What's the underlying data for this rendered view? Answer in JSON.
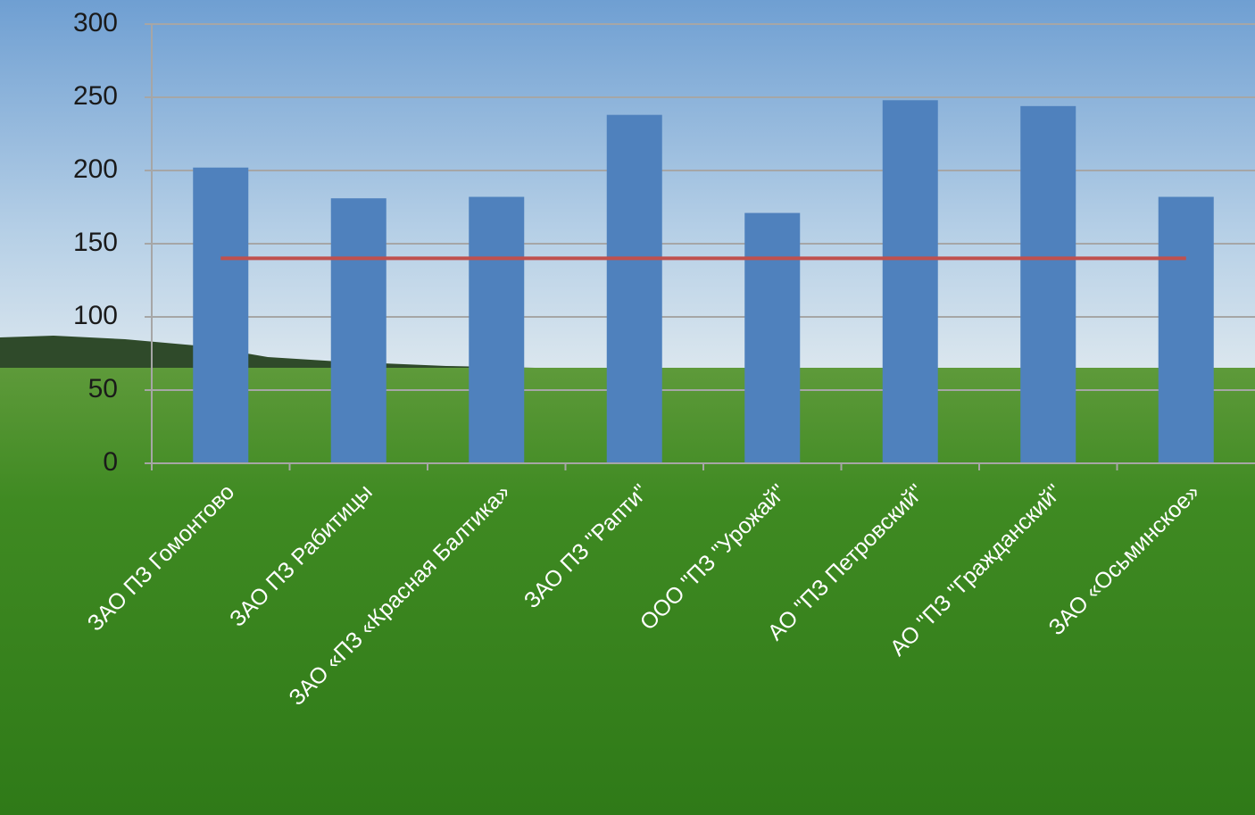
{
  "chart_data": {
    "type": "bar",
    "categories": [
      "ЗАО ПЗ Гомонтово",
      "ЗАО ПЗ Рабитицы",
      "ЗАО «ПЗ «Красная Балтика»",
      "ЗАО ПЗ \"Рапти\"",
      "ООО \"ПЗ \"Урожай\"",
      "АО \"ПЗ Петровский\"",
      "АО \"ПЗ \"Гражданский\"",
      "ЗАО «Осьминское»"
    ],
    "series": [
      {
        "type": "bar",
        "color": "#4f81bd",
        "values": [
          202,
          181,
          182,
          238,
          171,
          248,
          244,
          182
        ]
      },
      {
        "type": "line",
        "color": "#c0504d",
        "values": [
          140,
          140,
          140,
          140,
          140,
          140,
          140,
          140
        ]
      }
    ],
    "ylim": [
      0,
      300
    ],
    "yticks": [
      0,
      50,
      100,
      150,
      200,
      250,
      300
    ],
    "grid": true
  }
}
